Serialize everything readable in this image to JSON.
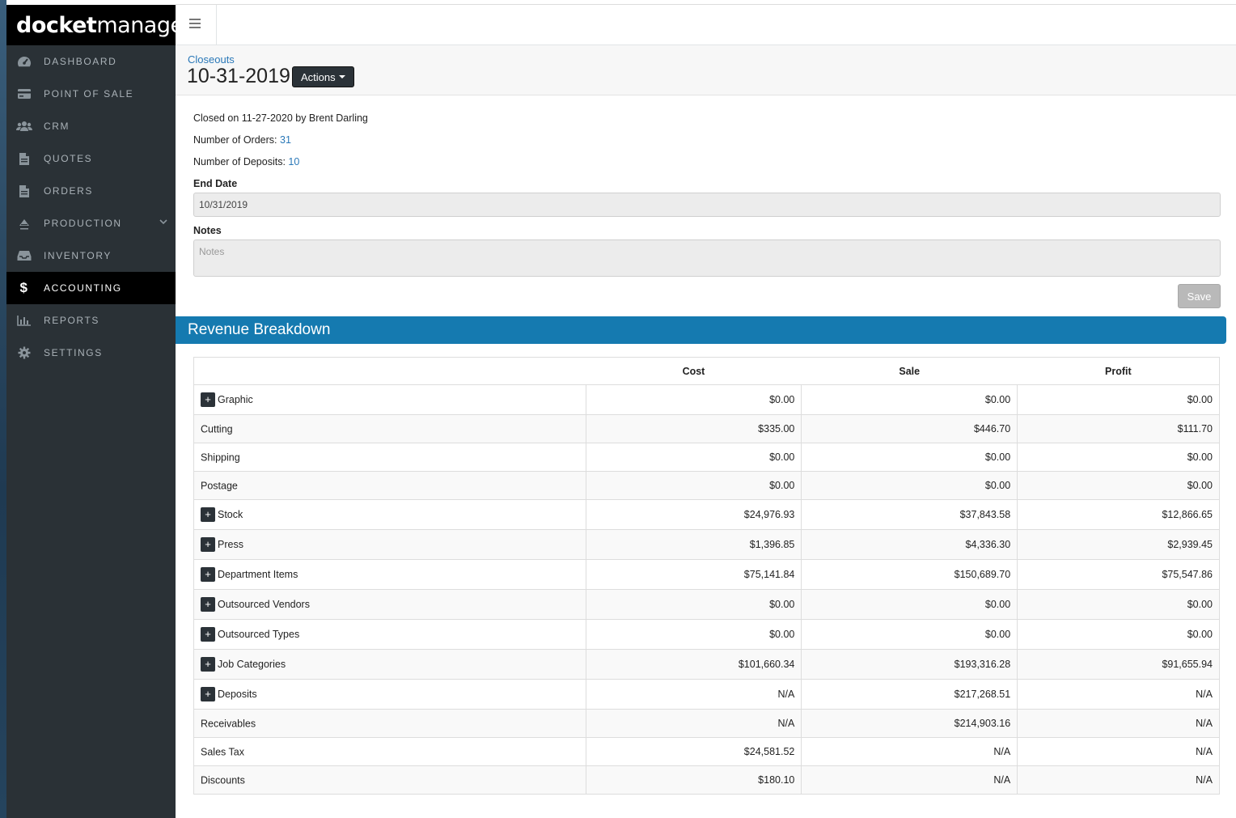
{
  "brand": {
    "bold": "docket",
    "light": "manager"
  },
  "sidebar": {
    "items": [
      {
        "label": "DASHBOARD",
        "icon": "dashboard-icon"
      },
      {
        "label": "POINT OF SALE",
        "icon": "credit-card-icon"
      },
      {
        "label": "CRM",
        "icon": "users-icon"
      },
      {
        "label": "QUOTES",
        "icon": "document-icon"
      },
      {
        "label": "ORDERS",
        "icon": "document-icon"
      },
      {
        "label": "PRODUCTION",
        "icon": "stamp-icon"
      },
      {
        "label": "INVENTORY",
        "icon": "inbox-icon"
      },
      {
        "label": "ACCOUNTING",
        "icon": "dollar-icon"
      },
      {
        "label": "REPORTS",
        "icon": "bar-chart-icon"
      },
      {
        "label": "SETTINGS",
        "icon": "gear-icon"
      }
    ],
    "active": "ACCOUNTING"
  },
  "header": {
    "breadcrumb": "Closeouts",
    "title": "10-31-2019",
    "actions_label": "Actions"
  },
  "closeout": {
    "closed_text": "Closed on 11-27-2020 by Brent Darling",
    "orders_label": "Number of Orders:",
    "orders_value": "31",
    "deposits_label": "Number of Deposits:",
    "deposits_value": "10",
    "end_date_label": "End Date",
    "end_date_value": "10/31/2019",
    "notes_label": "Notes",
    "notes_placeholder": "Notes",
    "save_label": "Save"
  },
  "revenue": {
    "title": "Revenue Breakdown",
    "columns": [
      "",
      "Cost",
      "Sale",
      "Profit"
    ],
    "rows": [
      {
        "name": "Graphic",
        "expandable": true,
        "cost": "$0.00",
        "sale": "$0.00",
        "profit": "$0.00"
      },
      {
        "name": "Cutting",
        "expandable": false,
        "cost": "$335.00",
        "sale": "$446.70",
        "profit": "$111.70"
      },
      {
        "name": "Shipping",
        "expandable": false,
        "cost": "$0.00",
        "sale": "$0.00",
        "profit": "$0.00"
      },
      {
        "name": "Postage",
        "expandable": false,
        "cost": "$0.00",
        "sale": "$0.00",
        "profit": "$0.00"
      },
      {
        "name": "Stock",
        "expandable": true,
        "cost": "$24,976.93",
        "sale": "$37,843.58",
        "profit": "$12,866.65"
      },
      {
        "name": "Press",
        "expandable": true,
        "cost": "$1,396.85",
        "sale": "$4,336.30",
        "profit": "$2,939.45"
      },
      {
        "name": "Department Items",
        "expandable": true,
        "cost": "$75,141.84",
        "sale": "$150,689.70",
        "profit": "$75,547.86"
      },
      {
        "name": "Outsourced Vendors",
        "expandable": true,
        "cost": "$0.00",
        "sale": "$0.00",
        "profit": "$0.00"
      },
      {
        "name": "Outsourced Types",
        "expandable": true,
        "cost": "$0.00",
        "sale": "$0.00",
        "profit": "$0.00"
      },
      {
        "name": "Job Categories",
        "expandable": true,
        "cost": "$101,660.34",
        "sale": "$193,316.28",
        "profit": "$91,655.94"
      },
      {
        "name": "Deposits",
        "expandable": true,
        "cost": "N/A",
        "sale": "$217,268.51",
        "profit": "N/A"
      },
      {
        "name": "Receivables",
        "expandable": false,
        "cost": "N/A",
        "sale": "$214,903.16",
        "profit": "N/A"
      },
      {
        "name": "Sales Tax",
        "expandable": false,
        "cost": "$24,581.52",
        "sale": "N/A",
        "profit": "N/A"
      },
      {
        "name": "Discounts",
        "expandable": false,
        "cost": "$180.10",
        "sale": "N/A",
        "profit": "N/A"
      }
    ]
  },
  "colors": {
    "accent": "#157ab0",
    "sidebar": "#2a3136",
    "link": "#2a78b8"
  }
}
